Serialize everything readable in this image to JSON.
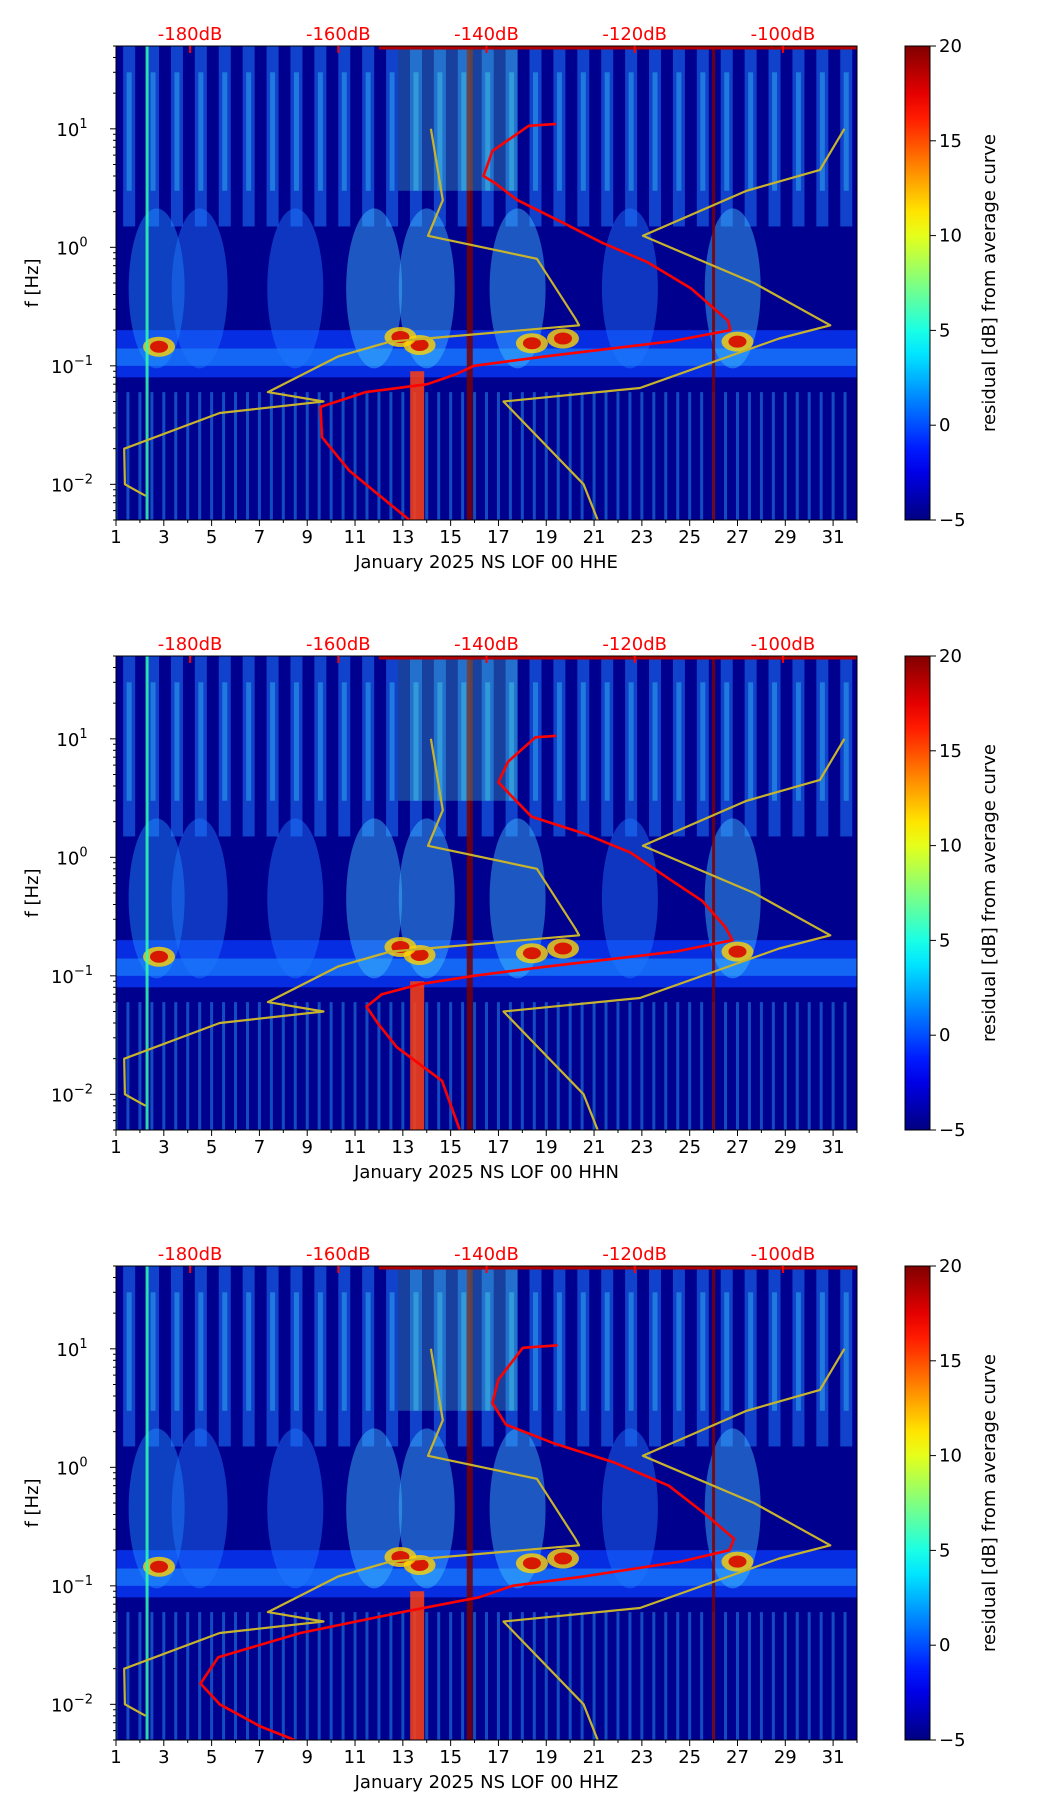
{
  "chart_data": [
    {
      "type": "heatmap",
      "xlabel": "January 2025 NS LOF 00 HHE",
      "ylabel": "f [Hz]",
      "x_range": [
        1,
        32
      ],
      "x_ticks": [
        "1",
        "3",
        "5",
        "7",
        "9",
        "11",
        "13",
        "15",
        "17",
        "19",
        "21",
        "23",
        "25",
        "27",
        "29",
        "31"
      ],
      "y_range": [
        0.005,
        50
      ],
      "y_scale": "log",
      "y_tick_labels": [
        {
          "base": "10",
          "exp": "1",
          "value": 10
        },
        {
          "base": "10",
          "exp": "0",
          "value": 1
        },
        {
          "base": "10",
          "exp": "−1",
          "value": 0.1
        },
        {
          "base": "10",
          "exp": "−2",
          "value": 0.01
        }
      ],
      "top_axis_labels": [
        "-180dB",
        "-160dB",
        "-140dB",
        "-120dB",
        "-100dB"
      ],
      "top_axis_db": [
        -180,
        -160,
        -140,
        -120,
        -100
      ],
      "colorbar_label": "residual [dB] from average curve",
      "colorbar_range": [
        -5,
        20
      ],
      "colorbar_ticks": [
        "20",
        "15",
        "10",
        "5",
        "0",
        "−5"
      ],
      "colorbar_values": [
        20,
        15,
        10,
        5,
        0,
        -5
      ],
      "series": [
        {
          "name": "noise model (yellow)",
          "color": "#c8b42c",
          "points": [
            [
              -147.5,
              10
            ],
            [
              -145.9,
              2.5
            ],
            [
              -147.9,
              1.25
            ],
            [
              -133.2,
              0.8
            ],
            [
              -128.0,
              0.25
            ],
            [
              -127.5,
              0.22
            ],
            [
              -153.0,
              0.16
            ],
            [
              -160.0,
              0.12
            ],
            [
              -169.5,
              0.06
            ],
            [
              -162.0,
              0.05
            ],
            [
              -176.0,
              0.04
            ],
            [
              -188.9,
              0.02
            ],
            [
              -188.8,
              0.01
            ],
            [
              -186.0,
              0.008
            ]
          ]
        },
        {
          "name": "noise model (yellow)",
          "color": "#c8b42c",
          "points": [
            [
              -91.7,
              10
            ],
            [
              -95.0,
              4.5
            ],
            [
              -104.9,
              3.0
            ],
            [
              -118.9,
              1.25
            ],
            [
              -103.9,
              0.5
            ],
            [
              -93.6,
              0.22
            ],
            [
              -100.5,
              0.17
            ],
            [
              -119.3,
              0.065
            ],
            [
              -137.7,
              0.05
            ],
            [
              -126.9,
              0.01
            ],
            [
              -125.0,
              0.005
            ]
          ]
        },
        {
          "name": "median PSD (red)",
          "color": "#ff0000",
          "points": [
            [
              -130.6,
              11.0
            ],
            [
              -134.3,
              10.6
            ],
            [
              -139.2,
              6.5
            ],
            [
              -140.4,
              4.0
            ],
            [
              -138.9,
              3.5
            ],
            [
              -135.8,
              2.5
            ],
            [
              -129.6,
              1.6
            ],
            [
              -124.5,
              1.1
            ],
            [
              -118.3,
              0.75
            ],
            [
              -112.4,
              0.45
            ],
            [
              -107.4,
              0.24
            ],
            [
              -107.1,
              0.2
            ],
            [
              -115.3,
              0.16
            ],
            [
              -132.1,
              0.12
            ],
            [
              -141.7,
              0.1
            ],
            [
              -144.1,
              0.085
            ],
            [
              -148.0,
              0.07
            ],
            [
              -156.3,
              0.06
            ],
            [
              -162.4,
              0.045
            ],
            [
              -162.2,
              0.025
            ],
            [
              -158.5,
              0.013
            ],
            [
              -150.4,
              0.005
            ]
          ]
        }
      ]
    },
    {
      "type": "heatmap",
      "xlabel": "January 2025 NS LOF 00 HHN",
      "ylabel": "f [Hz]",
      "x_range": [
        1,
        32
      ],
      "x_ticks": [
        "1",
        "3",
        "5",
        "7",
        "9",
        "11",
        "13",
        "15",
        "17",
        "19",
        "21",
        "23",
        "25",
        "27",
        "29",
        "31"
      ],
      "y_range": [
        0.005,
        50
      ],
      "y_scale": "log",
      "y_tick_labels": [
        {
          "base": "10",
          "exp": "1",
          "value": 10
        },
        {
          "base": "10",
          "exp": "0",
          "value": 1
        },
        {
          "base": "10",
          "exp": "−1",
          "value": 0.1
        },
        {
          "base": "10",
          "exp": "−2",
          "value": 0.01
        }
      ],
      "top_axis_labels": [
        "-180dB",
        "-160dB",
        "-140dB",
        "-120dB",
        "-100dB"
      ],
      "top_axis_db": [
        -180,
        -160,
        -140,
        -120,
        -100
      ],
      "colorbar_label": "residual [dB] from average curve",
      "colorbar_range": [
        -5,
        20
      ],
      "colorbar_ticks": [
        "20",
        "15",
        "10",
        "5",
        "0",
        "−5"
      ],
      "colorbar_values": [
        20,
        15,
        10,
        5,
        0,
        -5
      ],
      "series": [
        {
          "name": "noise model (yellow)",
          "color": "#c8b42c",
          "points": [
            [
              -147.5,
              10
            ],
            [
              -145.9,
              2.5
            ],
            [
              -147.9,
              1.25
            ],
            [
              -133.2,
              0.8
            ],
            [
              -128.0,
              0.25
            ],
            [
              -127.5,
              0.22
            ],
            [
              -153.0,
              0.16
            ],
            [
              -160.0,
              0.12
            ],
            [
              -169.5,
              0.06
            ],
            [
              -162.0,
              0.05
            ],
            [
              -176.0,
              0.04
            ],
            [
              -188.9,
              0.02
            ],
            [
              -188.8,
              0.01
            ],
            [
              -186.0,
              0.008
            ]
          ]
        },
        {
          "name": "noise model (yellow)",
          "color": "#c8b42c",
          "points": [
            [
              -91.7,
              10
            ],
            [
              -95.0,
              4.5
            ],
            [
              -104.9,
              3.0
            ],
            [
              -118.9,
              1.25
            ],
            [
              -103.9,
              0.5
            ],
            [
              -93.6,
              0.22
            ],
            [
              -100.5,
              0.17
            ],
            [
              -119.3,
              0.065
            ],
            [
              -137.7,
              0.05
            ],
            [
              -126.9,
              0.01
            ],
            [
              -125.0,
              0.005
            ]
          ]
        },
        {
          "name": "median PSD (red)",
          "color": "#ff0000",
          "points": [
            [
              -130.6,
              10.6
            ],
            [
              -133.4,
              10.3
            ],
            [
              -137.1,
              6.4
            ],
            [
              -138.4,
              4.3
            ],
            [
              -136.0,
              3.0
            ],
            [
              -133.9,
              2.2
            ],
            [
              -127.0,
              1.6
            ],
            [
              -120.6,
              1.1
            ],
            [
              -116.0,
              0.7
            ],
            [
              -110.9,
              0.43
            ],
            [
              -107.8,
              0.26
            ],
            [
              -106.8,
              0.2
            ],
            [
              -114.5,
              0.16
            ],
            [
              -131.7,
              0.12
            ],
            [
              -141.7,
              0.1
            ],
            [
              -149.0,
              0.085
            ],
            [
              -154.1,
              0.07
            ],
            [
              -156.2,
              0.055
            ],
            [
              -154.7,
              0.04
            ],
            [
              -152.1,
              0.025
            ],
            [
              -146.0,
              0.013
            ],
            [
              -143.6,
              0.005
            ]
          ]
        }
      ]
    },
    {
      "type": "heatmap",
      "xlabel": "January 2025 NS LOF 00 HHZ",
      "ylabel": "f [Hz]",
      "x_range": [
        1,
        32
      ],
      "x_ticks": [
        "1",
        "3",
        "5",
        "7",
        "9",
        "11",
        "13",
        "15",
        "17",
        "19",
        "21",
        "23",
        "25",
        "27",
        "29",
        "31"
      ],
      "y_range": [
        0.005,
        50
      ],
      "y_scale": "log",
      "y_tick_labels": [
        {
          "base": "10",
          "exp": "1",
          "value": 10
        },
        {
          "base": "10",
          "exp": "0",
          "value": 1
        },
        {
          "base": "10",
          "exp": "−1",
          "value": 0.1
        },
        {
          "base": "10",
          "exp": "−2",
          "value": 0.01
        }
      ],
      "top_axis_labels": [
        "-180dB",
        "-160dB",
        "-140dB",
        "-120dB",
        "-100dB"
      ],
      "top_axis_db": [
        -180,
        -160,
        -140,
        -120,
        -100
      ],
      "colorbar_label": "residual [dB] from average curve",
      "colorbar_range": [
        -5,
        20
      ],
      "colorbar_ticks": [
        "20",
        "15",
        "10",
        "5",
        "0",
        "−5"
      ],
      "colorbar_values": [
        20,
        15,
        10,
        5,
        0,
        -5
      ],
      "series": [
        {
          "name": "noise model (yellow)",
          "color": "#c8b42c",
          "points": [
            [
              -147.5,
              10
            ],
            [
              -145.9,
              2.5
            ],
            [
              -147.9,
              1.25
            ],
            [
              -133.2,
              0.8
            ],
            [
              -128.0,
              0.25
            ],
            [
              -127.5,
              0.22
            ],
            [
              -153.0,
              0.16
            ],
            [
              -160.0,
              0.12
            ],
            [
              -169.5,
              0.06
            ],
            [
              -162.0,
              0.05
            ],
            [
              -176.0,
              0.04
            ],
            [
              -188.9,
              0.02
            ],
            [
              -188.8,
              0.01
            ],
            [
              -186.0,
              0.008
            ]
          ]
        },
        {
          "name": "noise model (yellow)",
          "color": "#c8b42c",
          "points": [
            [
              -91.7,
              10
            ],
            [
              -95.0,
              4.5
            ],
            [
              -104.9,
              3.0
            ],
            [
              -118.9,
              1.25
            ],
            [
              -103.9,
              0.5
            ],
            [
              -93.6,
              0.22
            ],
            [
              -100.5,
              0.17
            ],
            [
              -119.3,
              0.065
            ],
            [
              -137.7,
              0.05
            ],
            [
              -126.9,
              0.01
            ],
            [
              -125.0,
              0.005
            ]
          ]
        },
        {
          "name": "median PSD (red)",
          "color": "#ff0000",
          "points": [
            [
              -130.4,
              10.7
            ],
            [
              -135.1,
              10.2
            ],
            [
              -138.4,
              5.5
            ],
            [
              -139.2,
              3.5
            ],
            [
              -137.4,
              2.3
            ],
            [
              -131.0,
              1.6
            ],
            [
              -122.8,
              1.1
            ],
            [
              -115.4,
              0.7
            ],
            [
              -110.4,
              0.4
            ],
            [
              -106.6,
              0.25
            ],
            [
              -107.2,
              0.2
            ],
            [
              -113.8,
              0.16
            ],
            [
              -126.8,
              0.12
            ],
            [
              -136.5,
              0.1
            ],
            [
              -141.0,
              0.08
            ],
            [
              -151.4,
              0.06
            ],
            [
              -165.1,
              0.04
            ],
            [
              -176.2,
              0.025
            ],
            [
              -178.6,
              0.015
            ],
            [
              -176.0,
              0.01
            ],
            [
              -170.5,
              0.0065
            ],
            [
              -165.9,
              0.005
            ]
          ]
        }
      ]
    }
  ]
}
